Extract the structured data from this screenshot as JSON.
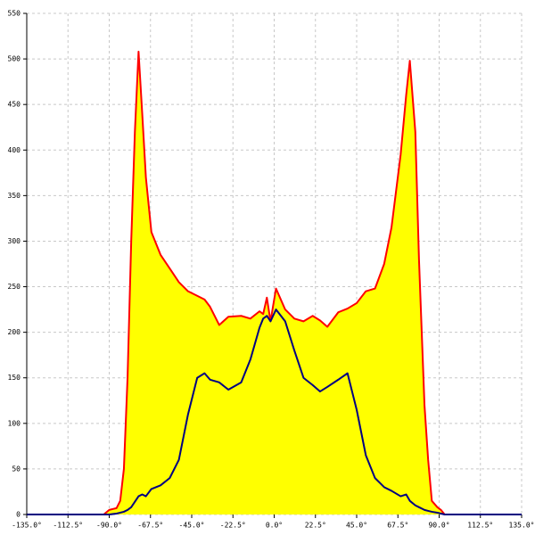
{
  "chart_data": {
    "type": "area-line",
    "x": [
      -135,
      -93,
      -90,
      -86,
      -84,
      -82,
      -80,
      -78,
      -76,
      -74,
      -72,
      -70,
      -67,
      -62,
      -57,
      -52,
      -47,
      -42,
      -38,
      -35,
      -30,
      -25,
      -18,
      -13,
      -8,
      -6,
      -4,
      -2,
      1,
      6,
      11,
      16,
      21,
      25,
      29,
      35,
      40,
      45,
      50,
      55,
      60,
      64,
      69,
      72,
      74,
      77,
      79,
      82,
      84,
      86,
      89,
      91,
      93,
      135
    ],
    "series": [
      {
        "color": "#ff0000",
        "fill": "#ffff00",
        "values": [
          0,
          0,
          5,
          7,
          15,
          50,
          150,
          300,
          420,
          508,
          440,
          370,
          310,
          285,
          270,
          255,
          245,
          240,
          236,
          228,
          208,
          217,
          218,
          215,
          223,
          220,
          238,
          212,
          248,
          225,
          215,
          212,
          218,
          213,
          206,
          222,
          226,
          232,
          245,
          248,
          275,
          315,
          395,
          460,
          498,
          420,
          280,
          120,
          60,
          15,
          8,
          5,
          0,
          0
        ]
      },
      {
        "color": "#000080",
        "values": [
          0,
          0,
          0,
          1,
          2,
          3,
          5,
          8,
          14,
          20,
          22,
          20,
          28,
          32,
          40,
          60,
          110,
          150,
          155,
          148,
          145,
          137,
          145,
          170,
          205,
          215,
          218,
          212,
          225,
          212,
          180,
          150,
          142,
          135,
          140,
          148,
          155,
          115,
          65,
          40,
          30,
          26,
          20,
          22,
          15,
          10,
          8,
          5,
          4,
          3,
          2,
          1,
          0,
          0
        ]
      }
    ],
    "xlim": [
      -135,
      135
    ],
    "ylim": [
      0,
      550
    ],
    "xticks": [
      {
        "value": -135,
        "label": "-135.0°"
      },
      {
        "value": -112.5,
        "label": "-112.5°"
      },
      {
        "value": -90,
        "label": "-90.0°"
      },
      {
        "value": -67.5,
        "label": "-67.5°"
      },
      {
        "value": -45,
        "label": "-45.0°"
      },
      {
        "value": -22.5,
        "label": "-22.5°"
      },
      {
        "value": 0,
        "label": "0.0°"
      },
      {
        "value": 22.5,
        "label": "22.5°"
      },
      {
        "value": 45,
        "label": "45.0°"
      },
      {
        "value": 67.5,
        "label": "67.5°"
      },
      {
        "value": 90,
        "label": "90.0°"
      },
      {
        "value": 112.5,
        "label": "112.5°"
      },
      {
        "value": 135,
        "label": "135.0°"
      }
    ],
    "yticks": [
      0,
      50,
      100,
      150,
      200,
      250,
      300,
      350,
      400,
      450,
      500,
      550
    ],
    "grid": true
  }
}
